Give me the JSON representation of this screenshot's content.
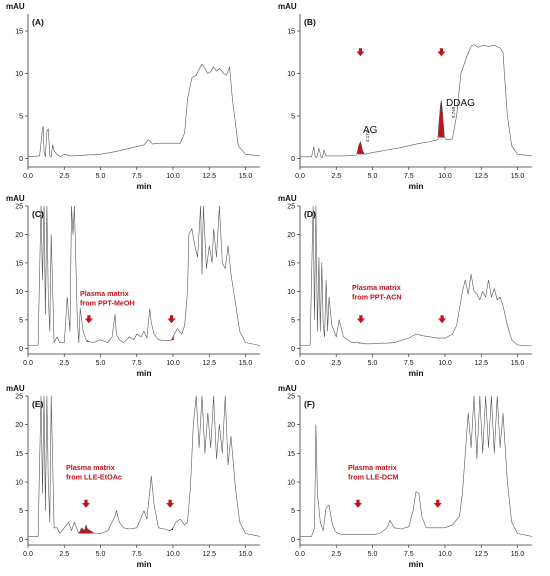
{
  "figure": {
    "panels": [
      {
        "label": "(A)",
        "y_unit": "mAU",
        "x_title": "min",
        "y_ticks": [
          "0",
          "5",
          "10",
          "15"
        ],
        "x_ticks": [
          "0.0",
          "2.5",
          "5.0",
          "7.5",
          "10.0",
          "12.5",
          "15.0"
        ],
        "annotation_lines": [],
        "peaks": []
      },
      {
        "label": "(B)",
        "y_unit": "mAU",
        "x_title": "min",
        "y_ticks": [
          "0",
          "5",
          "10",
          "15"
        ],
        "x_ticks": [
          "0.0",
          "2.5",
          "5.0",
          "7.5",
          "10.0",
          "12.5",
          "15.0"
        ],
        "annotation_lines": [],
        "peaks": [
          {
            "name": "AG",
            "time_label": "4.174"
          },
          {
            "name": "DDAG",
            "time_label": "9.748"
          }
        ]
      },
      {
        "label": "(C)",
        "y_unit": "mAU",
        "x_title": "min",
        "y_ticks": [
          "0",
          "5",
          "10",
          "15",
          "20",
          "25"
        ],
        "x_ticks": [
          "0.0",
          "2.5",
          "5.0",
          "7.5",
          "10.0",
          "12.5",
          "15.0"
        ],
        "annotation_lines": [
          "Plasma matrix",
          "from PPT-MeOH"
        ],
        "peaks": []
      },
      {
        "label": "(D)",
        "y_unit": "mAU",
        "x_title": "min",
        "y_ticks": [
          "0",
          "5",
          "10",
          "15",
          "20",
          "25"
        ],
        "x_ticks": [
          "0.0",
          "2.5",
          "5.0",
          "7.5",
          "10.0",
          "12.5",
          "15.0"
        ],
        "annotation_lines": [
          "Plasma matrix",
          "from PPT-ACN"
        ],
        "peaks": []
      },
      {
        "label": "(E)",
        "y_unit": "mAU",
        "x_title": "min",
        "y_ticks": [
          "0",
          "5",
          "10",
          "15",
          "20",
          "25"
        ],
        "x_ticks": [
          "0.0",
          "2.5",
          "5.0",
          "7.5",
          "10.0",
          "12.5",
          "15.0"
        ],
        "annotation_lines": [
          "Plasma matrix",
          "from LLE-EtOAc"
        ],
        "peaks": []
      },
      {
        "label": "(F)",
        "y_unit": "mAU",
        "x_title": "min",
        "y_ticks": [
          "0",
          "5",
          "10",
          "15",
          "20",
          "25"
        ],
        "x_ticks": [
          "0.0",
          "2.5",
          "5.0",
          "7.5",
          "10.0",
          "12.5",
          "15.0"
        ],
        "annotation_lines": [
          "Plasma matrix",
          "from LLE-DCM"
        ],
        "peaks": []
      }
    ]
  },
  "colors": {
    "trace": "#555555",
    "highlight": "#c0121b",
    "axis": "#333333",
    "text": "#111111"
  },
  "chart_data": [
    {
      "type": "line",
      "panel": "(A)",
      "xlabel": "min",
      "ylabel": "mAU",
      "xlim": [
        0,
        16
      ],
      "ylim": [
        -1,
        17
      ],
      "peak_windows": [],
      "arrows": [],
      "x": [
        0.0,
        0.8,
        1.0,
        1.05,
        1.1,
        1.2,
        1.3,
        1.4,
        1.5,
        1.6,
        1.7,
        1.8,
        2.0,
        2.2,
        2.5,
        3,
        4,
        5,
        6,
        7,
        7.5,
        8,
        8.3,
        8.6,
        9,
        10,
        10.5,
        10.8,
        11,
        11.3,
        11.6,
        11.8,
        12.0,
        12.2,
        12.4,
        12.6,
        12.8,
        13.0,
        13.2,
        13.5,
        13.7,
        13.9,
        14.1,
        14.5,
        15,
        16
      ],
      "y": [
        0.2,
        0.3,
        3.5,
        3.8,
        0.8,
        0.2,
        3.2,
        3.5,
        0.3,
        0.2,
        1.6,
        0.9,
        0.5,
        0.2,
        0.5,
        0.3,
        0.4,
        0.5,
        0.8,
        1.2,
        1.4,
        1.6,
        2.2,
        1.7,
        1.8,
        1.8,
        1.8,
        3,
        7,
        9.5,
        9.8,
        10.5,
        11.1,
        10.6,
        10,
        10.2,
        10.8,
        10.3,
        10.6,
        10,
        9.8,
        10.8,
        7,
        1.5,
        0.5,
        0.3
      ]
    },
    {
      "type": "line",
      "panel": "(B)",
      "xlabel": "min",
      "ylabel": "mAU",
      "xlim": [
        0,
        16
      ],
      "ylim": [
        -1,
        17
      ],
      "peak_windows": [
        [
          3.95,
          4.45
        ],
        [
          9.55,
          10.0
        ]
      ],
      "arrows": [
        {
          "x": 4.17,
          "y": 12.5
        },
        {
          "x": 9.75,
          "y": 12.5
        }
      ],
      "x": [
        0.0,
        0.8,
        0.95,
        1.05,
        1.15,
        1.3,
        1.45,
        1.55,
        1.65,
        1.8,
        2.2,
        3,
        3.9,
        4.05,
        4.17,
        4.3,
        4.45,
        5,
        6,
        7,
        8,
        9,
        9.5,
        9.6,
        9.7,
        9.75,
        9.85,
        9.95,
        10.1,
        10.5,
        10.8,
        11.1,
        11.5,
        11.8,
        12,
        12.3,
        12.6,
        13,
        13.4,
        13.8,
        14.0,
        14.1,
        14.3,
        14.6,
        15,
        16
      ],
      "y": [
        0.2,
        0.2,
        1.4,
        0.2,
        0.1,
        1.2,
        0.2,
        0.1,
        1.0,
        0.3,
        0.3,
        0.3,
        0.4,
        1.5,
        2.0,
        1.0,
        0.5,
        0.7,
        1.0,
        1.3,
        1.7,
        2,
        2.2,
        4.5,
        6.4,
        6.8,
        5.0,
        2.6,
        2.2,
        2.3,
        5,
        10,
        12,
        13.2,
        13.4,
        13.1,
        13.3,
        13.2,
        13.3,
        13,
        12.5,
        10,
        5,
        1.5,
        0.5,
        0.3
      ]
    },
    {
      "type": "line",
      "panel": "(C)",
      "xlabel": "min",
      "ylabel": "mAU",
      "xlim": [
        0,
        16
      ],
      "ylim": [
        -1,
        25
      ],
      "peak_windows": [
        [
          4.05,
          4.35
        ],
        [
          9.75,
          10.05
        ]
      ],
      "arrows": [
        {
          "x": 4.2,
          "y": 5.1
        },
        {
          "x": 9.9,
          "y": 5.1
        }
      ],
      "x": [
        0.0,
        0.7,
        0.9,
        1.0,
        1.1,
        1.2,
        1.3,
        1.4,
        1.5,
        1.6,
        1.8,
        2.0,
        2.2,
        2.5,
        2.7,
        2.9,
        3.0,
        3.1,
        3.2,
        3.4,
        3.5,
        3.6,
        3.8,
        4.0,
        4.2,
        4.5,
        5,
        5.5,
        5.8,
        6.0,
        6.1,
        6.3,
        6.6,
        7,
        7.3,
        7.5,
        7.8,
        8,
        8.2,
        8.4,
        8.5,
        8.7,
        9,
        9.3,
        9.6,
        9.9,
        10.1,
        10.3,
        10.6,
        10.8,
        11.0,
        11.1,
        11.3,
        11.5,
        11.7,
        11.9,
        12.0,
        12.1,
        12.3,
        12.5,
        12.7,
        12.8,
        13.0,
        13.2,
        13.4,
        13.6,
        13.8,
        14.0,
        14.3,
        14.6,
        15,
        16
      ],
      "y": [
        0.5,
        0.5,
        25,
        12,
        25,
        6,
        25,
        9,
        3,
        20,
        1,
        2,
        1,
        1,
        9,
        3,
        25,
        20,
        25,
        5,
        1,
        7,
        3,
        1.5,
        1.2,
        1.0,
        1.5,
        1,
        2,
        6,
        2.5,
        1.5,
        1,
        2,
        1.5,
        2.5,
        2,
        3,
        1.8,
        7,
        4.5,
        2.5,
        1.5,
        1.4,
        1.3,
        1.5,
        2.5,
        3.5,
        2.5,
        4,
        10,
        20,
        21,
        18,
        16,
        25,
        13,
        25,
        14,
        18,
        15,
        21,
        16,
        25,
        15,
        14,
        18,
        13,
        8,
        3,
        1,
        0.5
      ]
    },
    {
      "type": "line",
      "panel": "(D)",
      "xlabel": "min",
      "ylabel": "mAU",
      "xlim": [
        0,
        16
      ],
      "ylim": [
        -1,
        25
      ],
      "peak_windows": [
        [
          4.05,
          4.35
        ],
        [
          9.65,
          10.0
        ]
      ],
      "arrows": [
        {
          "x": 4.2,
          "y": 5.1
        },
        {
          "x": 9.8,
          "y": 5.1
        }
      ],
      "x": [
        0.0,
        0.7,
        0.9,
        1.0,
        1.1,
        1.2,
        1.3,
        1.4,
        1.5,
        1.6,
        1.7,
        1.8,
        1.9,
        2.0,
        2.2,
        2.5,
        2.7,
        3,
        3.3,
        3.6,
        4,
        4.5,
        5,
        5.5,
        6,
        6.5,
        7,
        7.5,
        8,
        8.5,
        9,
        9.5,
        10,
        10.5,
        10.8,
        11.0,
        11.2,
        11.4,
        11.6,
        11.8,
        12.0,
        12.2,
        12.4,
        12.6,
        12.8,
        13.0,
        13.2,
        13.4,
        13.6,
        13.8,
        14.0,
        14.3,
        14.6,
        15,
        16
      ],
      "y": [
        0.5,
        0.5,
        25,
        5,
        25,
        3,
        16,
        3,
        15,
        4,
        2,
        12,
        3,
        9,
        4,
        2,
        5,
        2,
        1.5,
        1,
        1,
        0.8,
        0.8,
        0.9,
        0.9,
        1,
        1.4,
        1.8,
        2.5,
        2.2,
        2,
        1.8,
        1.8,
        2.5,
        4,
        7,
        10,
        12,
        9.5,
        13,
        10,
        9.5,
        8.5,
        10,
        9,
        12,
        9,
        10.5,
        8.5,
        9,
        7.5,
        4,
        1.5,
        0.6,
        0.4
      ]
    },
    {
      "type": "line",
      "panel": "(E)",
      "xlabel": "min",
      "ylabel": "mAU",
      "xlim": [
        0,
        16
      ],
      "ylim": [
        -1,
        25
      ],
      "peak_windows": [
        [
          3.5,
          4.5
        ],
        [
          9.65,
          10.0
        ]
      ],
      "arrows": [
        {
          "x": 4.0,
          "y": 6.2
        },
        {
          "x": 9.8,
          "y": 6.2
        }
      ],
      "x": [
        0.0,
        0.7,
        0.9,
        1.0,
        1.1,
        1.2,
        1.3,
        1.4,
        1.5,
        1.6,
        1.8,
        2.0,
        2.2,
        2.5,
        2.8,
        3.0,
        3.2,
        3.5,
        3.7,
        3.9,
        4.0,
        4.1,
        4.3,
        4.6,
        5,
        5.5,
        6.0,
        6.1,
        6.3,
        6.6,
        7,
        7.5,
        8,
        8.2,
        8.5,
        8.7,
        9,
        9.4,
        9.8,
        10.0,
        10.2,
        10.5,
        10.8,
        11.0,
        11.2,
        11.4,
        11.6,
        11.8,
        12.0,
        12.2,
        12.4,
        12.6,
        12.8,
        13.0,
        13.2,
        13.4,
        13.6,
        13.8,
        14.0,
        14.3,
        14.6,
        15,
        16
      ],
      "y": [
        0.5,
        0.5,
        25,
        8,
        25,
        5,
        25,
        10,
        3,
        25,
        2,
        2,
        1,
        2,
        3,
        1.5,
        3,
        1,
        2,
        1.5,
        2.5,
        1.8,
        1.5,
        1,
        1,
        1.5,
        4,
        5,
        3,
        2,
        1.8,
        2,
        5,
        3.5,
        11,
        6,
        2,
        1.8,
        1.5,
        2,
        3,
        3.5,
        2.5,
        3,
        9,
        20,
        25,
        16,
        25,
        15,
        22,
        16,
        25,
        14,
        20,
        15,
        25,
        13,
        18,
        9,
        3,
        1,
        0.5
      ]
    },
    {
      "type": "line",
      "panel": "(F)",
      "xlabel": "min",
      "ylabel": "mAU",
      "xlim": [
        0,
        16
      ],
      "ylim": [
        -1,
        25
      ],
      "peak_windows": [],
      "arrows": [
        {
          "x": 4.0,
          "y": 6.2
        },
        {
          "x": 9.5,
          "y": 6.2
        }
      ],
      "x": [
        0.0,
        0.8,
        1.0,
        1.1,
        1.2,
        1.4,
        1.6,
        1.8,
        2.0,
        2.2,
        2.4,
        2.6,
        3.0,
        3.5,
        4,
        4.5,
        5,
        5.5,
        6.0,
        6.2,
        6.5,
        7.0,
        7.5,
        7.8,
        8.0,
        8.2,
        8.4,
        8.7,
        9,
        9.5,
        10,
        10.5,
        11.0,
        11.2,
        11.4,
        11.6,
        11.8,
        12.0,
        12.2,
        12.4,
        12.6,
        12.8,
        13.0,
        13.2,
        13.4,
        13.6,
        13.8,
        14.0,
        14.3,
        14.6,
        15,
        16
      ],
      "y": [
        0.5,
        0.5,
        2,
        20,
        8,
        3,
        1.5,
        5.5,
        6,
        3,
        1.5,
        1,
        0.8,
        0.8,
        0.8,
        0.8,
        0.8,
        1,
        2,
        3.3,
        2,
        1.8,
        2.2,
        5,
        8.3,
        8,
        4,
        2,
        2,
        2,
        2,
        2.5,
        4,
        8,
        15,
        22,
        16,
        25,
        14,
        25,
        15,
        25,
        16,
        25,
        15,
        25,
        16,
        22,
        10,
        3,
        1,
        0.5
      ]
    }
  ]
}
